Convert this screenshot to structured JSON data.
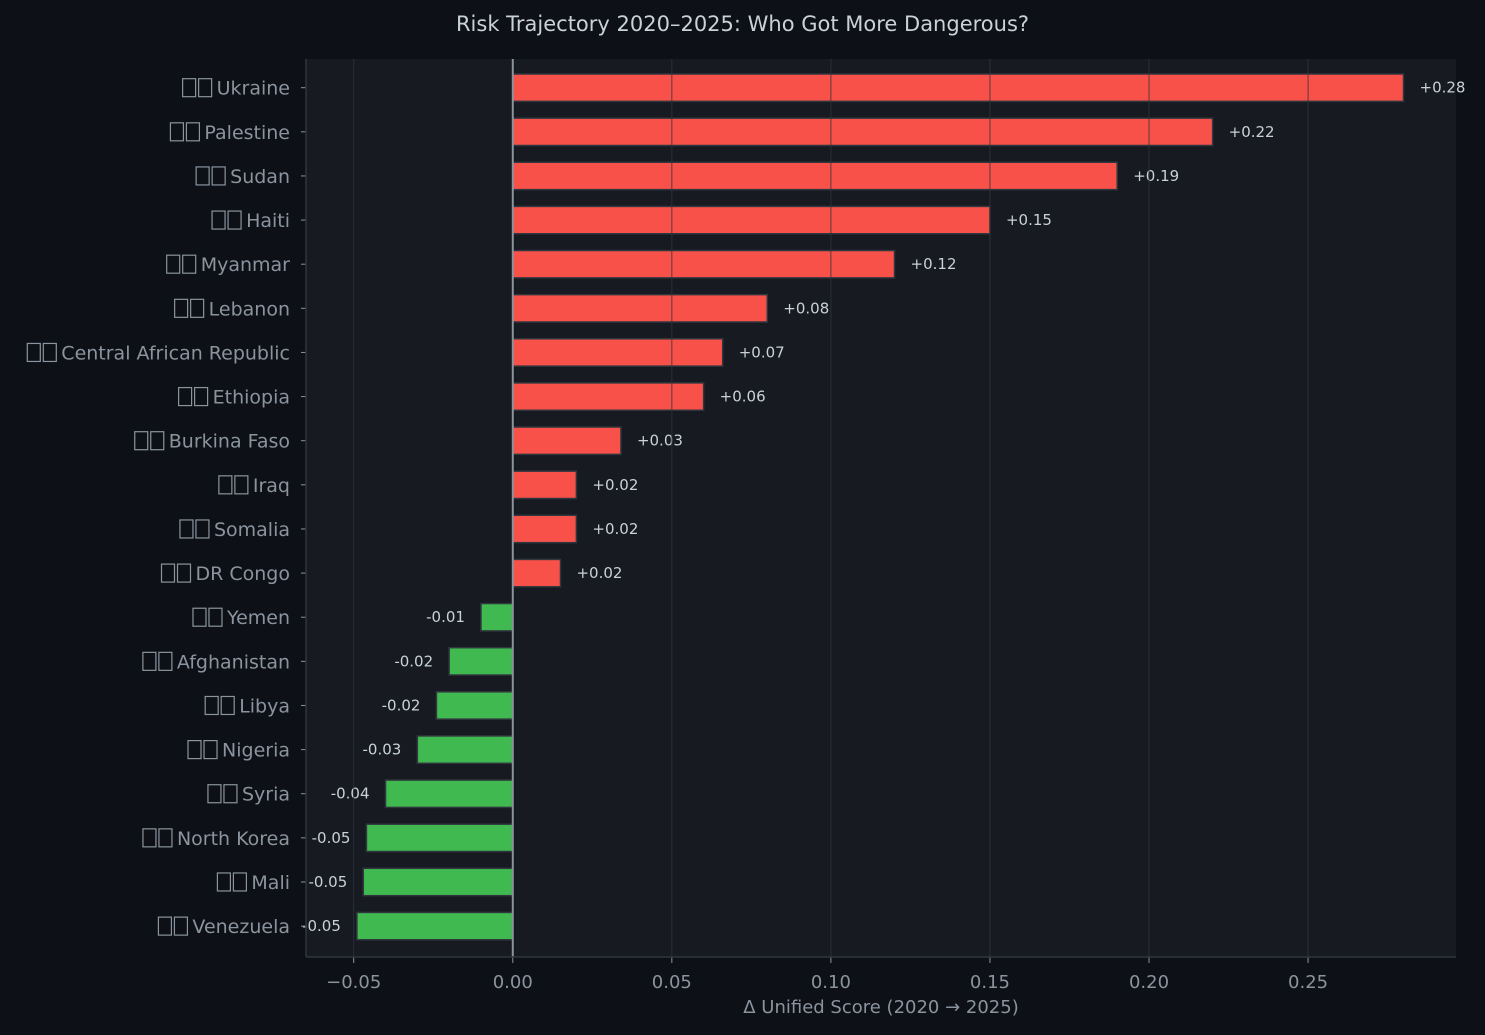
{
  "chart_data": {
    "type": "bar",
    "orientation": "horizontal",
    "title": "Risk Trajectory 2020–2025: Who Got More Dangerous?",
    "xlabel": "Δ Unified Score (2020 → 2025)",
    "ylabel": "",
    "xlim": [
      -0.065,
      0.2965
    ],
    "xticks": [
      -0.05,
      0.0,
      0.05,
      0.1,
      0.15,
      0.2,
      0.25
    ],
    "xtick_labels": [
      "−0.05",
      "0.00",
      "0.05",
      "0.10",
      "0.15",
      "0.20",
      "0.25"
    ],
    "grid": "vertical",
    "categories": [
      "Ukraine",
      "Palestine",
      "Sudan",
      "Haiti",
      "Myanmar",
      "Lebanon",
      "Central African Republic",
      "Ethiopia",
      "Burkina Faso",
      "Iraq",
      "Somalia",
      "DR Congo",
      "Yemen",
      "Afghanistan",
      "Libya",
      "Nigeria",
      "Syria",
      "North Korea",
      "Mali",
      "Venezuela"
    ],
    "values": [
      0.28,
      0.22,
      0.19,
      0.15,
      0.12,
      0.08,
      0.066,
      0.06,
      0.034,
      0.02,
      0.02,
      0.015,
      -0.01,
      -0.02,
      -0.024,
      -0.03,
      -0.04,
      -0.046,
      -0.047,
      -0.049
    ],
    "data_labels": [
      "+0.28",
      "+0.22",
      "+0.19",
      "+0.15",
      "+0.12",
      "+0.08",
      "+0.07",
      "+0.06",
      "+0.03",
      "+0.02",
      "+0.02",
      "+0.02",
      "-0.01",
      "-0.02",
      "-0.02",
      "-0.03",
      "-0.04",
      "-0.05",
      "-0.05",
      "-0.05"
    ],
    "colors": {
      "increase": "#f85149",
      "decrease": "#3fb950",
      "background": "#0d1017",
      "plot_background": "#171a21"
    }
  }
}
